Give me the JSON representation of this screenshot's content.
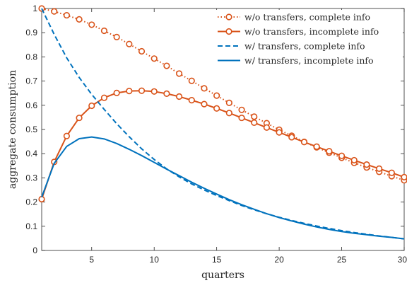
{
  "chart_data": {
    "type": "line",
    "title": "",
    "xlabel": "quarters",
    "ylabel": "aggregate consumption",
    "xlim": [
      1,
      30
    ],
    "ylim": [
      0,
      1
    ],
    "xticks": [
      5,
      10,
      15,
      20,
      25,
      30
    ],
    "xtick_labels": [
      "5",
      "10",
      "15",
      "20",
      "25",
      "30"
    ],
    "yticks": [
      0,
      0.1,
      0.2,
      0.3,
      0.4,
      0.5,
      0.6,
      0.7,
      0.8,
      0.9,
      1
    ],
    "ytick_labels": [
      "0",
      "0.1",
      "0.2",
      "0.3",
      "0.4",
      "0.5",
      "0.6",
      "0.7",
      "0.8",
      "0.9",
      "1"
    ],
    "grid": false,
    "legend_position": "top-right",
    "x": [
      1,
      2,
      3,
      4,
      5,
      6,
      7,
      8,
      9,
      10,
      11,
      12,
      13,
      14,
      15,
      16,
      17,
      18,
      19,
      20,
      21,
      22,
      23,
      24,
      25,
      26,
      27,
      28,
      29,
      30
    ],
    "series": [
      {
        "name": "w/o transfers, complete info",
        "color": "#d95319",
        "line_style": "dotted",
        "marker": "circle",
        "values": [
          1.0,
          0.988,
          0.972,
          0.955,
          0.933,
          0.908,
          0.882,
          0.853,
          0.823,
          0.793,
          0.763,
          0.731,
          0.701,
          0.67,
          0.64,
          0.61,
          0.581,
          0.553,
          0.526,
          0.499,
          0.474,
          0.449,
          0.426,
          0.404,
          0.383,
          0.362,
          0.343,
          0.325,
          0.307,
          0.29
        ]
      },
      {
        "name": "w/o transfers, incomplete info",
        "color": "#d95319",
        "line_style": "solid",
        "marker": "circle",
        "values": [
          0.212,
          0.366,
          0.473,
          0.548,
          0.598,
          0.631,
          0.651,
          0.659,
          0.66,
          0.657,
          0.648,
          0.636,
          0.621,
          0.605,
          0.587,
          0.568,
          0.548,
          0.528,
          0.508,
          0.488,
          0.468,
          0.448,
          0.429,
          0.41,
          0.391,
          0.373,
          0.355,
          0.338,
          0.321,
          0.303
        ]
      },
      {
        "name": "w/ transfers, complete info",
        "color": "#0072bd",
        "line_style": "dashed",
        "marker": "none",
        "values": [
          1.0,
          0.893,
          0.796,
          0.715,
          0.645,
          0.583,
          0.524,
          0.47,
          0.42,
          0.376,
          0.337,
          0.304,
          0.275,
          0.25,
          0.227,
          0.206,
          0.186,
          0.168,
          0.152,
          0.137,
          0.124,
          0.112,
          0.101,
          0.091,
          0.082,
          0.074,
          0.067,
          0.06,
          0.054,
          0.048
        ]
      },
      {
        "name": "w/ transfers, incomplete info",
        "color": "#0072bd",
        "line_style": "solid",
        "marker": "none",
        "values": [
          0.22,
          0.36,
          0.43,
          0.462,
          0.469,
          0.461,
          0.442,
          0.418,
          0.392,
          0.364,
          0.336,
          0.309,
          0.282,
          0.257,
          0.233,
          0.21,
          0.189,
          0.17,
          0.152,
          0.136,
          0.122,
          0.109,
          0.097,
          0.087,
          0.078,
          0.071,
          0.065,
          0.059,
          0.054,
          0.048
        ]
      }
    ]
  }
}
